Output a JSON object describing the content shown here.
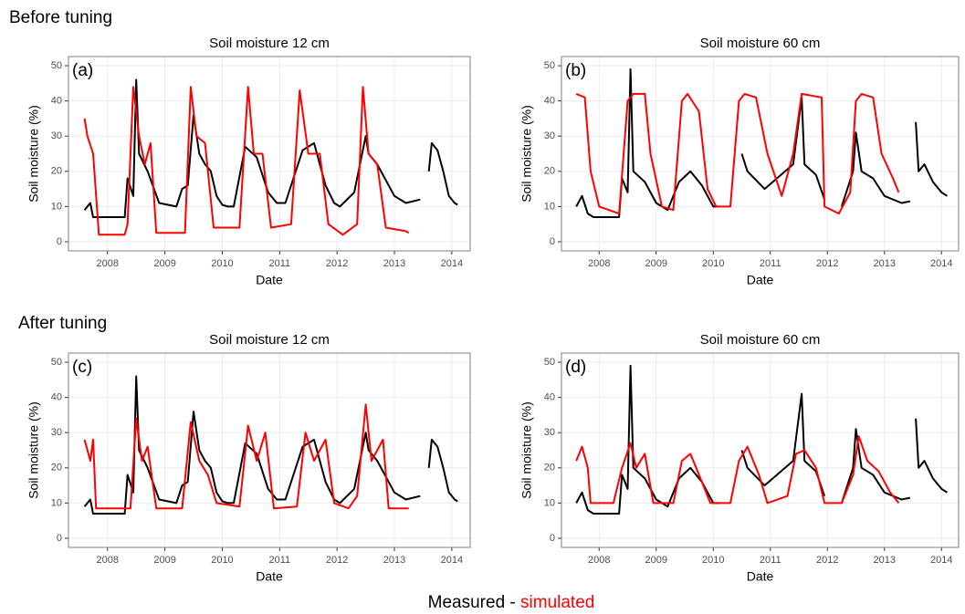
{
  "headings": [
    "Before tuning",
    "After tuning"
  ],
  "legend_separator": "-",
  "chart_data": [
    {
      "type": "line",
      "title": "Soil moisture 12 cm",
      "panel_label": "(a)",
      "xlabel": "Date",
      "ylabel": "Soil moisture (%)",
      "xlim": [
        2007.32,
        2014.32
      ],
      "ylim": [
        -2.6,
        52.6
      ],
      "xticks": [
        2008,
        2009,
        2010,
        2011,
        2012,
        2013,
        2014
      ],
      "yticks": [
        0,
        10,
        20,
        30,
        40,
        50
      ],
      "grid": true,
      "series": [
        {
          "name": "Measured",
          "color": "#000000",
          "x": [
            2007.6,
            2007.7,
            2007.75,
            2008.3,
            2008.35,
            2008.45,
            2008.5,
            2008.55,
            2008.7,
            2008.9,
            2009.2,
            2009.3,
            2009.4,
            2009.5,
            2009.6,
            2009.7,
            2009.8,
            2009.9,
            2010.0,
            2010.1,
            2010.2,
            2010.4,
            2010.6,
            2010.8,
            2010.95,
            2011.1,
            2011.4,
            2011.6,
            2011.8,
            2011.95,
            2012.05,
            2012.3,
            2012.5,
            2012.55,
            2012.7,
            2012.9,
            2013.0,
            2013.2,
            2013.45,
            2013.5,
            2013.6,
            2013.65,
            2013.75,
            2013.85,
            2013.95,
            2014.05,
            2014.1,
            2014.12,
            2014.15
          ],
          "values": [
            9,
            11,
            7,
            7,
            18,
            13,
            46,
            25,
            20,
            11,
            10,
            15,
            16,
            36,
            25,
            22,
            20,
            13,
            10.5,
            10,
            10,
            27,
            24,
            14,
            11,
            11,
            26,
            28,
            16,
            11,
            10,
            14,
            30,
            25,
            22,
            16,
            13,
            11,
            12,
            null,
            20,
            28,
            26,
            20,
            13,
            11,
            10.5,
            null,
            10
          ]
        },
        {
          "name": "simulated",
          "color": "#ff0000",
          "x": [
            2007.6,
            2007.65,
            2007.75,
            2007.85,
            2008.3,
            2008.35,
            2008.45,
            2008.55,
            2008.65,
            2008.75,
            2008.85,
            2009.35,
            2009.45,
            2009.55,
            2009.7,
            2009.85,
            2010.3,
            2010.45,
            2010.55,
            2010.7,
            2010.85,
            2011.2,
            2011.35,
            2011.5,
            2011.7,
            2011.85,
            2012.1,
            2012.35,
            2012.45,
            2012.55,
            2012.7,
            2012.85,
            2013.2,
            2013.25
          ],
          "values": [
            35,
            30,
            25,
            2,
            2,
            5,
            44,
            30,
            22,
            28,
            2.5,
            2.5,
            44,
            30,
            28,
            4,
            4,
            44,
            25,
            25,
            4,
            5,
            43,
            25,
            25,
            5,
            2,
            5,
            44,
            25,
            22,
            4,
            3,
            2.5
          ]
        }
      ]
    },
    {
      "type": "line",
      "title": "Soil moisture 60 cm",
      "panel_label": "(b)",
      "xlabel": "Date",
      "ylabel": "Soil moisture (%)",
      "xlim": [
        2007.34,
        2014.3
      ],
      "ylim": [
        -2.6,
        52.6
      ],
      "xticks": [
        2008,
        2009,
        2010,
        2011,
        2012,
        2013,
        2014
      ],
      "yticks": [
        0,
        10,
        20,
        30,
        40,
        50
      ],
      "grid": true,
      "series": [
        {
          "name": "Measured",
          "color": "#000000",
          "x": [
            2007.6,
            2007.7,
            2007.8,
            2007.9,
            2008.35,
            2008.4,
            2008.5,
            2008.55,
            2008.6,
            2008.8,
            2009.0,
            2009.2,
            2009.4,
            2009.6,
            2009.8,
            2010.0,
            2010.1,
            2010.2,
            2010.5,
            2010.6,
            2010.9,
            2011.4,
            2011.55,
            2011.6,
            2011.8,
            2011.95,
            2012.1,
            2012.25,
            2012.45,
            2012.5,
            2012.6,
            2012.8,
            2013.0,
            2013.3,
            2013.45,
            2013.5,
            2013.55,
            2013.6,
            2013.7,
            2013.85,
            2014.0,
            2014.1,
            2014.15,
            2014.2
          ],
          "values": [
            10,
            13,
            8,
            7,
            7,
            18,
            14,
            49,
            20,
            17,
            11,
            9,
            17,
            20,
            16,
            10,
            10,
            null,
            25,
            20,
            15,
            22,
            41,
            22,
            19,
            12,
            null,
            10,
            20,
            31,
            20,
            18,
            13,
            11,
            11.5,
            null,
            34,
            20,
            22,
            17,
            14,
            13,
            null,
            10
          ]
        },
        {
          "name": "simulated",
          "color": "#ff0000",
          "x": [
            2007.6,
            2007.75,
            2007.85,
            2008.0,
            2008.35,
            2008.5,
            2008.6,
            2008.8,
            2008.9,
            2009.1,
            2009.3,
            2009.45,
            2009.55,
            2009.75,
            2009.9,
            2010.05,
            2010.3,
            2010.45,
            2010.55,
            2010.75,
            2010.95,
            2011.2,
            2011.4,
            2011.55,
            2011.9,
            2011.95,
            2012.2,
            2012.4,
            2012.5,
            2012.6,
            2012.8,
            2012.95,
            2013.15,
            2013.25
          ],
          "values": [
            42,
            41,
            20,
            10,
            8,
            40,
            42,
            42,
            25,
            10,
            9,
            40,
            42,
            37,
            15,
            10,
            10,
            40,
            42,
            41,
            25,
            13,
            25,
            42,
            41,
            10,
            8,
            14,
            40,
            42,
            41,
            25,
            18,
            14
          ]
        }
      ]
    },
    {
      "type": "line",
      "title": "Soil moisture 12 cm",
      "panel_label": "(c)",
      "xlabel": "Date",
      "ylabel": "Soil moisture (%)",
      "xlim": [
        2007.32,
        2014.32
      ],
      "ylim": [
        -2.6,
        52.6
      ],
      "xticks": [
        2008,
        2009,
        2010,
        2011,
        2012,
        2013,
        2014
      ],
      "yticks": [
        0,
        10,
        20,
        30,
        40,
        50
      ],
      "grid": true,
      "series": [
        {
          "name": "Measured",
          "color": "#000000",
          "x": [
            2007.6,
            2007.7,
            2007.75,
            2008.3,
            2008.35,
            2008.45,
            2008.5,
            2008.55,
            2008.7,
            2008.9,
            2009.2,
            2009.3,
            2009.4,
            2009.5,
            2009.6,
            2009.7,
            2009.8,
            2009.9,
            2010.0,
            2010.1,
            2010.2,
            2010.4,
            2010.6,
            2010.8,
            2010.95,
            2011.1,
            2011.4,
            2011.6,
            2011.8,
            2011.95,
            2012.05,
            2012.3,
            2012.5,
            2012.55,
            2012.7,
            2012.9,
            2013.0,
            2013.2,
            2013.45,
            2013.5,
            2013.6,
            2013.65,
            2013.75,
            2013.85,
            2013.95,
            2014.05,
            2014.1,
            2014.12,
            2014.15
          ],
          "values": [
            9,
            11,
            7,
            7,
            18,
            13,
            46,
            25,
            20,
            11,
            10,
            15,
            16,
            36,
            25,
            22,
            20,
            13,
            10.5,
            10,
            10,
            27,
            24,
            14,
            11,
            11,
            26,
            28,
            16,
            11,
            10,
            14,
            30,
            25,
            22,
            16,
            13,
            11,
            12,
            null,
            20,
            28,
            26,
            20,
            13,
            11,
            10.5,
            null,
            10
          ]
        },
        {
          "name": "simulated",
          "color": "#ff0000",
          "x": [
            2007.6,
            2007.7,
            2007.75,
            2007.8,
            2008.4,
            2008.5,
            2008.6,
            2008.7,
            2008.85,
            2009.3,
            2009.45,
            2009.6,
            2009.75,
            2009.9,
            2010.3,
            2010.45,
            2010.6,
            2010.75,
            2010.9,
            2011.3,
            2011.45,
            2011.6,
            2011.8,
            2011.95,
            2012.2,
            2012.35,
            2012.5,
            2012.6,
            2012.8,
            2012.9,
            2013.25
          ],
          "values": [
            28,
            22,
            28,
            8.5,
            8.5,
            34,
            22,
            26,
            8.5,
            8.5,
            33,
            22,
            18,
            10,
            9,
            32,
            22,
            30,
            8.5,
            9,
            30,
            22,
            28,
            10,
            8.5,
            12,
            38,
            22,
            28,
            8.5,
            8.5
          ]
        }
      ]
    },
    {
      "type": "line",
      "title": "Soil moisture 60 cm",
      "panel_label": "(d)",
      "xlabel": "Date",
      "ylabel": "Soil moisture (%)",
      "xlim": [
        2007.34,
        2014.3
      ],
      "ylim": [
        -2.6,
        52.6
      ],
      "xticks": [
        2008,
        2009,
        2010,
        2011,
        2012,
        2013,
        2014
      ],
      "yticks": [
        0,
        10,
        20,
        30,
        40,
        50
      ],
      "grid": true,
      "series": [
        {
          "name": "Measured",
          "color": "#000000",
          "x": [
            2007.6,
            2007.7,
            2007.8,
            2007.9,
            2008.35,
            2008.4,
            2008.5,
            2008.55,
            2008.6,
            2008.8,
            2009.0,
            2009.2,
            2009.4,
            2009.6,
            2009.8,
            2010.0,
            2010.1,
            2010.2,
            2010.5,
            2010.6,
            2010.9,
            2011.4,
            2011.55,
            2011.6,
            2011.8,
            2011.95,
            2012.1,
            2012.25,
            2012.45,
            2012.5,
            2012.6,
            2012.8,
            2013.0,
            2013.3,
            2013.45,
            2013.5,
            2013.55,
            2013.6,
            2013.7,
            2013.85,
            2014.0,
            2014.1,
            2014.15,
            2014.2
          ],
          "values": [
            10,
            13,
            8,
            7,
            7,
            18,
            14,
            49,
            20,
            17,
            11,
            9,
            17,
            20,
            16,
            10,
            10,
            null,
            25,
            20,
            15,
            22,
            41,
            22,
            19,
            12,
            null,
            10,
            20,
            31,
            20,
            18,
            13,
            11,
            11.5,
            null,
            34,
            20,
            22,
            17,
            14,
            13,
            null,
            10
          ]
        },
        {
          "name": "simulated",
          "color": "#ff0000",
          "x": [
            2007.6,
            2007.7,
            2007.8,
            2007.85,
            2008.25,
            2008.4,
            2008.55,
            2008.65,
            2008.8,
            2008.95,
            2009.3,
            2009.45,
            2009.6,
            2009.8,
            2009.95,
            2010.3,
            2010.45,
            2010.6,
            2010.8,
            2010.95,
            2011.3,
            2011.45,
            2011.6,
            2011.8,
            2011.95,
            2012.25,
            2012.45,
            2012.55,
            2012.7,
            2012.9,
            2013.1,
            2013.25
          ],
          "values": [
            22,
            26,
            20,
            10,
            10,
            20,
            27,
            20,
            24,
            10,
            10,
            22,
            24,
            16,
            10,
            10,
            22,
            26,
            18,
            10,
            12,
            24,
            25,
            20,
            10,
            10,
            18,
            29,
            22,
            19,
            13,
            10
          ]
        }
      ]
    }
  ]
}
